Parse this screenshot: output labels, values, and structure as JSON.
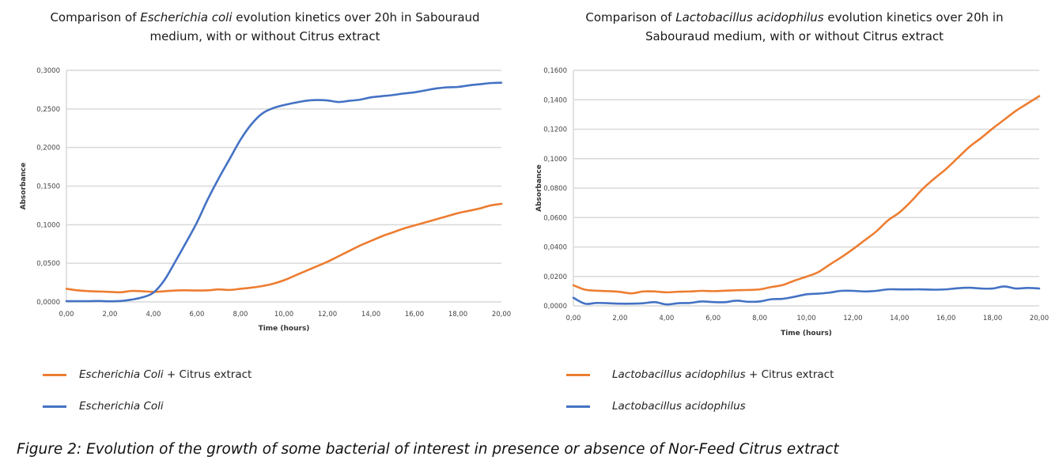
{
  "caption": "Figure 2: Evolution of the growth of some bacterial of interest in presence or absence of Nor-Feed Citrus extract",
  "colors": {
    "orange": "#ED7D31",
    "blue": "#4472C4",
    "grid": "#D9D9D9"
  },
  "chart_data": [
    {
      "type": "line",
      "title_parts": {
        "prefix": "Comparison of ",
        "italic": "Escherichia coli",
        "suffix": " evolution kinetics over 20h in Sabouraud",
        "line2": "medium, with or without Citrus extract"
      },
      "title": "Comparison of Escherichia coli evolution kinetics over 20h in Sabouraud medium, with or without Citrus extract",
      "xlabel": "Time (hours)",
      "ylabel": "Absorbance",
      "xlim": [
        0,
        20
      ],
      "ylim": [
        0,
        0.3
      ],
      "grid": true,
      "legend_position": "bottom-left",
      "xticks": [
        "0,00",
        "2,00",
        "4,00",
        "6,00",
        "8,00",
        "10,00",
        "12,00",
        "14,00",
        "16,00",
        "18,00",
        "20,00"
      ],
      "xtick_values": [
        0,
        2,
        4,
        6,
        8,
        10,
        12,
        14,
        16,
        18,
        20
      ],
      "yticks": [
        "0,0000",
        "0,0500",
        "0,1000",
        "0,1500",
        "0,2000",
        "0,2500",
        "0,3000"
      ],
      "ytick_values": [
        0,
        0.05,
        0.1,
        0.15,
        0.2,
        0.25,
        0.3
      ],
      "series": [
        {
          "name": "Escherichia Coli + Citrus extract",
          "legend_italic": "Escherichia Coli",
          "legend_suffix": " + Citrus extract",
          "color": "#ED7D31",
          "x": [
            0,
            0.5,
            1,
            1.5,
            2,
            2.5,
            3,
            3.5,
            4,
            4.5,
            5,
            5.5,
            6,
            6.5,
            7,
            7.5,
            8,
            8.5,
            9,
            9.5,
            10,
            10.5,
            11,
            11.5,
            12,
            12.5,
            13,
            13.5,
            14,
            14.5,
            15,
            15.5,
            16,
            16.5,
            17,
            17.5,
            18,
            18.5,
            19,
            19.5,
            20
          ],
          "y": [
            0.017,
            0.015,
            0.014,
            0.0135,
            0.013,
            0.0125,
            0.0142,
            0.0138,
            0.013,
            0.0138,
            0.0148,
            0.015,
            0.0148,
            0.015,
            0.0162,
            0.0155,
            0.017,
            0.0185,
            0.0205,
            0.0235,
            0.028,
            0.034,
            0.04,
            0.046,
            0.052,
            0.059,
            0.066,
            0.073,
            0.079,
            0.085,
            0.09,
            0.095,
            0.099,
            0.103,
            0.107,
            0.111,
            0.115,
            0.118,
            0.121,
            0.125,
            0.127
          ]
        },
        {
          "name": "Escherichia Coli",
          "legend_italic": "Escherichia Coli",
          "legend_suffix": "",
          "color": "#4472C4",
          "x": [
            0,
            0.5,
            1,
            1.5,
            2,
            2.5,
            3,
            3.5,
            4,
            4.5,
            5,
            5.5,
            6,
            6.5,
            7,
            7.5,
            8,
            8.5,
            9,
            9.5,
            10,
            10.5,
            11,
            11.5,
            12,
            12.5,
            13,
            13.5,
            14,
            14.5,
            15,
            15.5,
            16,
            16.5,
            17,
            17.5,
            18,
            18.5,
            19,
            19.5,
            20
          ],
          "y": [
            0.001,
            0.001,
            0.001,
            0.0012,
            0.0008,
            0.0012,
            0.003,
            0.006,
            0.012,
            0.028,
            0.052,
            0.077,
            0.103,
            0.133,
            0.16,
            0.185,
            0.21,
            0.23,
            0.244,
            0.251,
            0.255,
            0.258,
            0.2605,
            0.2615,
            0.261,
            0.259,
            0.2605,
            0.262,
            0.265,
            0.2665,
            0.268,
            0.27,
            0.2715,
            0.274,
            0.2765,
            0.278,
            0.2785,
            0.2805,
            0.282,
            0.2835,
            0.284
          ]
        }
      ]
    },
    {
      "type": "line",
      "title_parts": {
        "prefix": "Comparison of ",
        "italic": "Lactobacillus acidophilus",
        "suffix": " evolution kinetics over 20h in",
        "line2": "Sabouraud medium, with or without Citrus extract"
      },
      "title": "Comparison of Lactobacillus acidophilus evolution kinetics over 20h in Sabouraud medium, with or without Citrus extract",
      "xlabel": "Time (hours)",
      "ylabel": "Absorbance",
      "xlim": [
        0,
        20
      ],
      "ylim": [
        0,
        0.16
      ],
      "grid": true,
      "legend_position": "bottom-left",
      "xticks": [
        "0,00",
        "2,00",
        "4,00",
        "6,00",
        "8,00",
        "10,00",
        "12,00",
        "14,00",
        "16,00",
        "18,00",
        "20,00"
      ],
      "xtick_values": [
        0,
        2,
        4,
        6,
        8,
        10,
        12,
        14,
        16,
        18,
        20
      ],
      "yticks": [
        "0,0000",
        "0,0200",
        "0,0400",
        "0,0600",
        "0,0800",
        "0,1000",
        "0,1200",
        "0,1400",
        "0,1600"
      ],
      "ytick_values": [
        0,
        0.02,
        0.04,
        0.06,
        0.08,
        0.1,
        0.12,
        0.14,
        0.16
      ],
      "series": [
        {
          "name": "Lactobacillus acidophilus + Citrus extract",
          "legend_italic": "Lactobacillus acidophilus",
          "legend_suffix": " + Citrus extract",
          "color": "#ED7D31",
          "x": [
            0,
            0.5,
            1,
            1.5,
            2,
            2.5,
            3,
            3.5,
            4,
            4.5,
            5,
            5.5,
            6,
            6.5,
            7,
            7.5,
            8,
            8.5,
            9,
            9.5,
            10,
            10.5,
            11,
            11.5,
            12,
            12.5,
            13,
            13.5,
            14,
            14.5,
            15,
            15.5,
            16,
            16.5,
            17,
            17.5,
            18,
            18.5,
            19,
            19.5,
            20
          ],
          "y": [
            0.014,
            0.011,
            0.0103,
            0.01,
            0.0095,
            0.0085,
            0.0098,
            0.0098,
            0.0092,
            0.0096,
            0.0098,
            0.0102,
            0.01,
            0.0103,
            0.0106,
            0.0108,
            0.0112,
            0.0128,
            0.0142,
            0.0172,
            0.0198,
            0.0228,
            0.028,
            0.033,
            0.0385,
            0.0445,
            0.0505,
            0.058,
            0.0635,
            0.071,
            0.0795,
            0.0865,
            0.093,
            0.1005,
            0.108,
            0.114,
            0.1205,
            0.1265,
            0.1325,
            0.1375,
            0.1425
          ]
        },
        {
          "name": "Lactobacillus acidophilus",
          "legend_italic": "Lactobacillus acidophilus",
          "legend_suffix": "",
          "color": "#4472C4",
          "x": [
            0,
            0.5,
            1,
            1.5,
            2,
            2.5,
            3,
            3.5,
            4,
            4.5,
            5,
            5.5,
            6,
            6.5,
            7,
            7.5,
            8,
            8.5,
            9,
            9.5,
            10,
            10.5,
            11,
            11.5,
            12,
            12.5,
            13,
            13.5,
            14,
            14.5,
            15,
            15.5,
            16,
            16.5,
            17,
            17.5,
            18,
            18.5,
            19,
            19.5,
            20
          ],
          "y": [
            0.0055,
            0.0015,
            0.002,
            0.0018,
            0.0015,
            0.0015,
            0.0018,
            0.0025,
            0.001,
            0.0018,
            0.002,
            0.003,
            0.0026,
            0.0025,
            0.0035,
            0.0028,
            0.003,
            0.0045,
            0.0048,
            0.0062,
            0.0078,
            0.0083,
            0.009,
            0.0102,
            0.0102,
            0.0098,
            0.0102,
            0.0112,
            0.0112,
            0.0112,
            0.0112,
            0.011,
            0.0112,
            0.012,
            0.0123,
            0.0118,
            0.0118,
            0.0132,
            0.0118,
            0.0122,
            0.0118
          ]
        }
      ]
    }
  ]
}
